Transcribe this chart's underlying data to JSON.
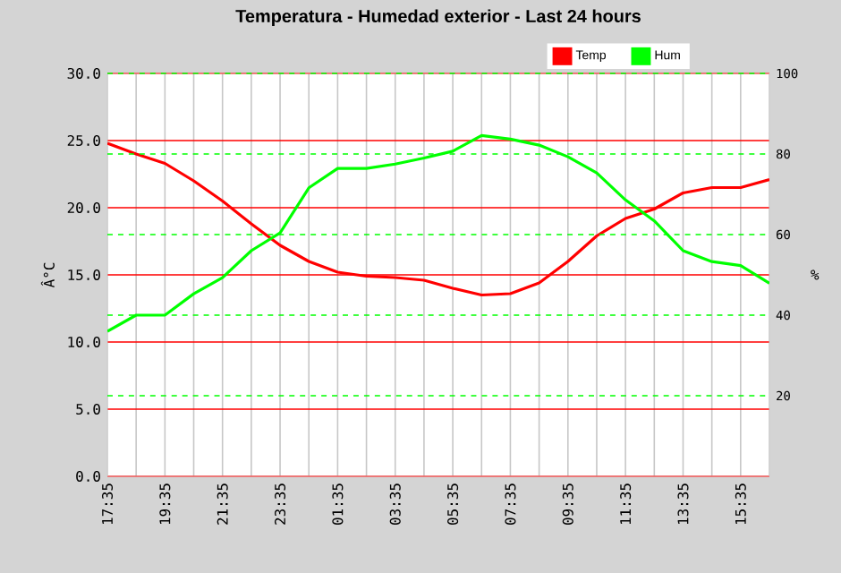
{
  "chart_data": {
    "type": "line",
    "title": "Temperatura - Humedad exterior - Last 24 hours",
    "ylabel": "Â°C",
    "y2label": "%",
    "categories": [
      "17:35",
      null,
      "19:35",
      null,
      "21:35",
      null,
      "23:35",
      null,
      "01:35",
      null,
      "03:35",
      null,
      "05:35",
      null,
      "07:35",
      null,
      "09:35",
      null,
      "11:35",
      null,
      "13:35",
      null,
      "15:35",
      null
    ],
    "series": [
      {
        "name": "Temp",
        "color": "#ff0000",
        "values": [
          24.8,
          24.0,
          23.3,
          22.0,
          20.5,
          18.8,
          17.2,
          16.0,
          15.2,
          14.9,
          14.8,
          14.6,
          14.0,
          13.5,
          13.6,
          14.4,
          16.0,
          17.9,
          19.2,
          19.9,
          21.1,
          21.5,
          21.5,
          22.1
        ]
      },
      {
        "name": "Hum",
        "color": "#00ff00",
        "axis": "y2",
        "values": [
          36,
          40,
          40,
          45.3,
          49.3,
          56,
          60.4,
          71.6,
          76.4,
          76.4,
          77.5,
          79,
          80.7,
          84.6,
          83.7,
          82.2,
          79.3,
          75.3,
          68.6,
          63.4,
          56,
          53.3,
          52.3,
          47.9
        ]
      }
    ],
    "ylim": [
      0,
      30
    ],
    "y2lim": [
      0,
      100
    ],
    "yticks": [
      {
        "value": 0,
        "label": "0.0"
      },
      {
        "value": 5,
        "label": "5.0"
      },
      {
        "value": 10,
        "label": "10.0"
      },
      {
        "value": 15,
        "label": "15.0"
      },
      {
        "value": 20,
        "label": "20.0"
      },
      {
        "value": 25,
        "label": "25.0"
      },
      {
        "value": 30,
        "label": "30.0"
      }
    ],
    "y2ticks": [
      20,
      40,
      60,
      80,
      100
    ],
    "grid": true,
    "legend": "top right"
  }
}
